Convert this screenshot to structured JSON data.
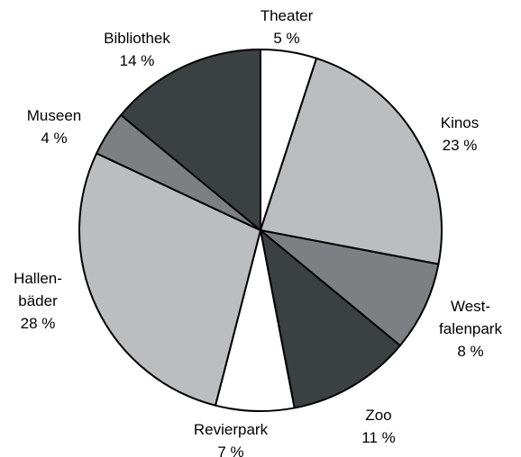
{
  "chart_data": {
    "type": "pie",
    "categories": [
      "Theater",
      "Kinos",
      "West-\nfalenpark",
      "Zoo",
      "Revierpark",
      "Hallen-\nbäder",
      "Museen",
      "Bibliothek"
    ],
    "values": [
      5,
      23,
      8,
      11,
      7,
      28,
      4,
      14
    ],
    "value_labels": [
      "5 %",
      "23 %",
      "8 %",
      "11 %",
      "7 %",
      "28 %",
      "4 %",
      "14 %"
    ],
    "colors": [
      "#ffffff",
      "#bbbdbf",
      "#7d8082",
      "#3b4042",
      "#ffffff",
      "#bbbdbf",
      "#7d8082",
      "#3b4042"
    ]
  }
}
